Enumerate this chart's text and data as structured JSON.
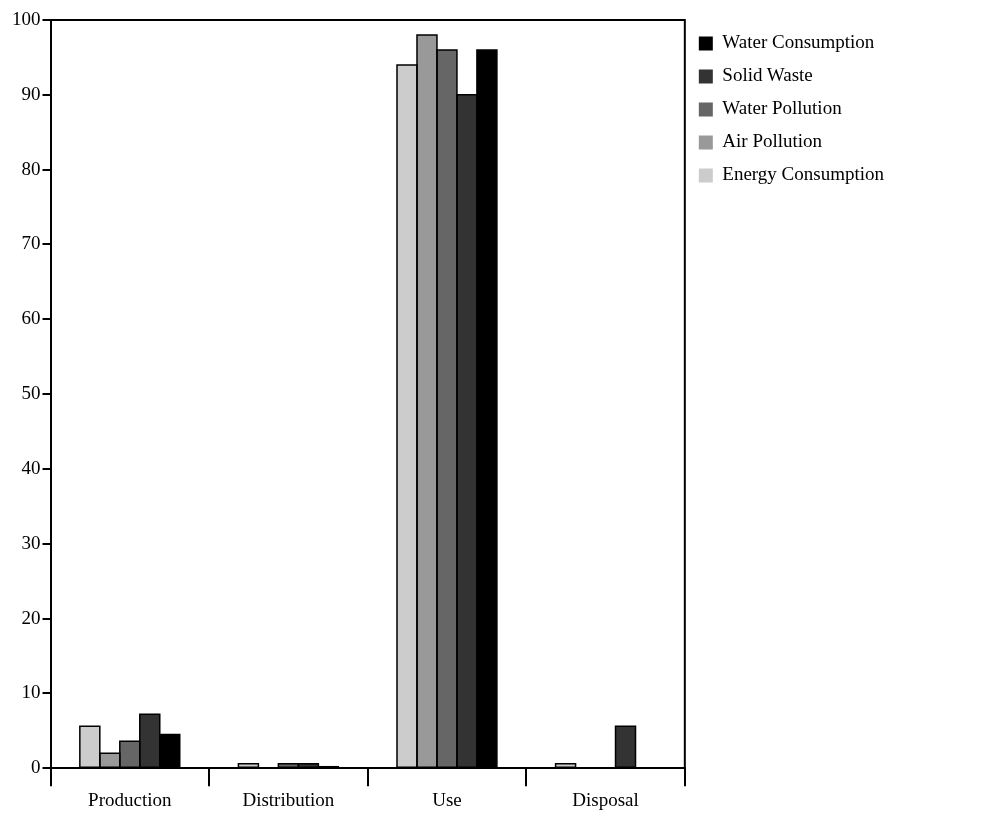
{
  "chart_data": {
    "type": "bar",
    "categories": [
      "Production",
      "Distribution",
      "Use",
      "Disposal"
    ],
    "series": [
      {
        "name": "Energy Consumption",
        "color": "#cccccc",
        "values": [
          5.6,
          0.6,
          94,
          0.6
        ]
      },
      {
        "name": "Air Pollution",
        "color": "#999999",
        "values": [
          2.0,
          0,
          98,
          0
        ]
      },
      {
        "name": "Water Pollution",
        "color": "#666666",
        "values": [
          3.6,
          0.6,
          96,
          0
        ]
      },
      {
        "name": "Solid Waste",
        "color": "#333333",
        "values": [
          7.2,
          0.6,
          90,
          5.6
        ]
      },
      {
        "name": "Water Consumption",
        "color": "#000000",
        "values": [
          4.5,
          0.2,
          96,
          0
        ]
      }
    ],
    "ylim": [
      0,
      100
    ],
    "yticks": [
      0,
      10,
      20,
      30,
      40,
      50,
      60,
      70,
      80,
      90,
      100
    ],
    "grid": false,
    "legend": "top right"
  }
}
